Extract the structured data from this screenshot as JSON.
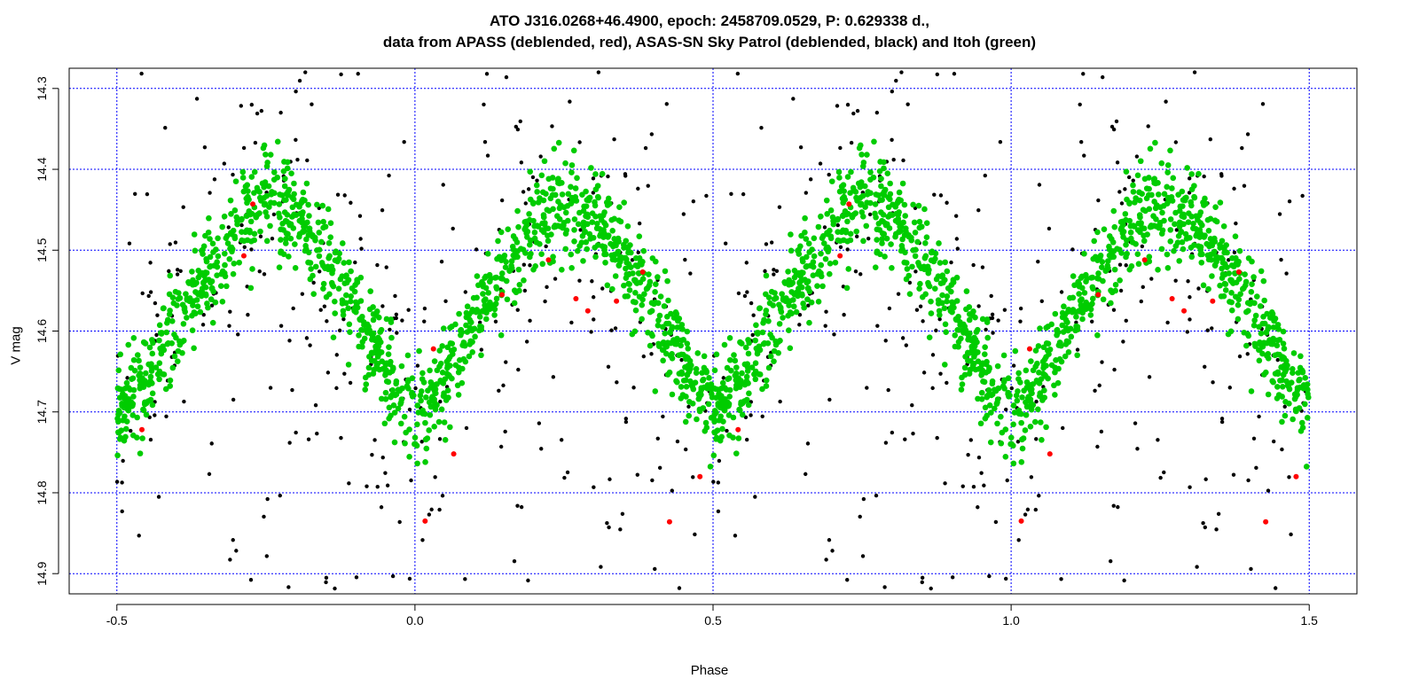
{
  "chart_data": {
    "type": "scatter",
    "title_line1": "ATO J316.0268+46.4900, epoch: 2458709.0529, P: 0.629338 d.,",
    "title_line2": "data from APASS (deblended, red), ASAS-SN Sky Patrol (deblended, black) and Itoh (green)",
    "xlabel": "Phase",
    "ylabel": "V mag",
    "xlim": [
      -0.58,
      1.58
    ],
    "ylim": [
      14.925,
      14.275
    ],
    "y_inverted": true,
    "x_ticks": [
      -0.5,
      0.0,
      0.5,
      1.0,
      1.5
    ],
    "x_tick_labels": [
      "-0.5",
      "0.0",
      "0.5",
      "1.0",
      "1.5"
    ],
    "y_ticks": [
      14.3,
      14.4,
      14.5,
      14.6,
      14.7,
      14.8,
      14.9
    ],
    "y_tick_labels": [
      "14.3",
      "14.4",
      "14.5",
      "14.6",
      "14.7",
      "14.8",
      "14.9"
    ],
    "grid": true,
    "grid_color": "#0000ff",
    "phase_repeat": 1.0,
    "series": [
      {
        "color": "#00cc00",
        "light_curve": {
          "phase": [
            0.0,
            0.05,
            0.1,
            0.15,
            0.2,
            0.25,
            0.3,
            0.35,
            0.4,
            0.45,
            0.5
          ],
          "mag": [
            14.71,
            14.655,
            14.59,
            14.53,
            14.475,
            14.44,
            14.455,
            14.5,
            14.57,
            14.64,
            14.7
          ],
          "scatter_mag": 0.04,
          "n_points": 1300
        }
      },
      {
        "color": "#000000",
        "n_points": 360,
        "phase_range": [
          -0.5,
          1.5
        ],
        "mag_range": [
          14.28,
          14.92
        ]
      },
      {
        "color": "#ff0000",
        "points": [
          {
            "phase": 0.017,
            "mag": 14.835
          },
          {
            "phase": 0.031,
            "mag": 14.622
          },
          {
            "phase": 0.065,
            "mag": 14.752
          },
          {
            "phase": 0.146,
            "mag": 14.555
          },
          {
            "phase": 0.224,
            "mag": 14.512
          },
          {
            "phase": 0.27,
            "mag": 14.56
          },
          {
            "phase": 0.338,
            "mag": 14.563
          },
          {
            "phase": 0.29,
            "mag": 14.575
          },
          {
            "phase": 0.382,
            "mag": 14.527
          },
          {
            "phase": 0.427,
            "mag": 14.836
          },
          {
            "phase": 0.478,
            "mag": 14.78
          },
          {
            "phase": 0.542,
            "mag": 14.722
          },
          {
            "phase": 0.713,
            "mag": 14.507
          },
          {
            "phase": 0.728,
            "mag": 14.443
          }
        ]
      }
    ]
  }
}
